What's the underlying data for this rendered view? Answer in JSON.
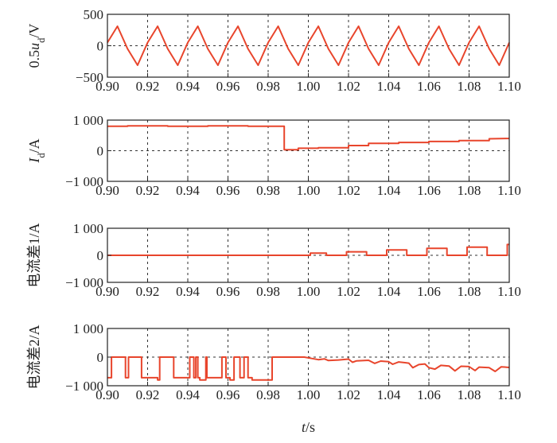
{
  "chart_data": [
    {
      "type": "line",
      "ylabel": "0.5u_d/V",
      "ylabel_parts": [
        {
          "t": "0.5"
        },
        {
          "t": "u",
          "i": true
        },
        {
          "t": "d",
          "sub": true
        },
        {
          "t": "/V"
        }
      ],
      "ylim": [
        -500,
        500
      ],
      "yticks": [
        -500,
        0,
        500
      ],
      "ytick_labels": [
        "−500",
        "0",
        "500"
      ],
      "xlim": [
        0.9,
        1.1
      ],
      "xticks": [
        0.9,
        0.92,
        0.94,
        0.96,
        0.98,
        1.0,
        1.02,
        1.04,
        1.06,
        1.08,
        1.1
      ],
      "xtick_labels": [
        "0.90",
        "0.92",
        "0.94",
        "0.96",
        "0.98",
        "1.00",
        "1.02",
        "1.04",
        "1.06",
        "1.08",
        "1.10"
      ],
      "grid": true,
      "color": "#e8452c",
      "series": [
        {
          "x": [
            0.9,
            0.905,
            0.91,
            0.915,
            0.92,
            0.925,
            0.93,
            0.935,
            0.94,
            0.945,
            0.95,
            0.955,
            0.96,
            0.965,
            0.97,
            0.975,
            0.98,
            0.985,
            0.99,
            0.995,
            1.0,
            1.005,
            1.01,
            1.015,
            1.02,
            1.025,
            1.03,
            1.035,
            1.04,
            1.045,
            1.05,
            1.055,
            1.06,
            1.065,
            1.07,
            1.075,
            1.08,
            1.085,
            1.09,
            1.095,
            1.1
          ],
          "values": [
            50,
            310,
            -50,
            -310,
            50,
            310,
            -50,
            -310,
            50,
            310,
            -50,
            -310,
            50,
            310,
            -50,
            -310,
            50,
            310,
            -50,
            -310,
            50,
            310,
            -50,
            -310,
            50,
            310,
            -50,
            -310,
            50,
            310,
            -50,
            -310,
            50,
            310,
            -50,
            -310,
            50,
            310,
            -50,
            -310,
            50
          ]
        }
      ]
    },
    {
      "type": "line",
      "ylabel": "I_d/A",
      "ylabel_parts": [
        {
          "t": "I",
          "i": true
        },
        {
          "t": "d",
          "sub": true
        },
        {
          "t": "/A"
        }
      ],
      "ylim": [
        -1000,
        1000
      ],
      "yticks": [
        -1000,
        0,
        1000
      ],
      "ytick_labels": [
        "−1 000",
        "0",
        "1 000"
      ],
      "xlim": [
        0.9,
        1.1
      ],
      "xticks": [
        0.9,
        0.92,
        0.94,
        0.96,
        0.98,
        1.0,
        1.02,
        1.04,
        1.06,
        1.08,
        1.1
      ],
      "xtick_labels": [
        "0.90",
        "0.92",
        "0.94",
        "0.96",
        "0.98",
        "1.00",
        "1.02",
        "1.04",
        "1.06",
        "1.08",
        "1.10"
      ],
      "grid": true,
      "color": "#e8452c",
      "series": [
        {
          "x": [
            0.9,
            0.91,
            0.91,
            0.93,
            0.93,
            0.95,
            0.95,
            0.97,
            0.97,
            0.988,
            0.988,
            0.995,
            0.995,
            1.005,
            1.005,
            1.02,
            1.02,
            1.03,
            1.03,
            1.045,
            1.045,
            1.06,
            1.06,
            1.075,
            1.075,
            1.09,
            1.09,
            1.1
          ],
          "values": [
            800,
            800,
            810,
            810,
            800,
            800,
            810,
            810,
            800,
            800,
            30,
            30,
            80,
            80,
            100,
            100,
            170,
            170,
            240,
            240,
            270,
            270,
            300,
            300,
            330,
            330,
            390,
            400
          ]
        }
      ]
    },
    {
      "type": "line",
      "ylabel": "电流差1/A",
      "ylabel_parts": [
        {
          "t": "电流差1/A"
        }
      ],
      "ylim": [
        -1000,
        1000
      ],
      "yticks": [
        -1000,
        0,
        1000
      ],
      "ytick_labels": [
        "−1 000",
        "0",
        "1 000"
      ],
      "xlim": [
        0.9,
        1.1
      ],
      "xticks": [
        0.9,
        0.92,
        0.94,
        0.96,
        0.98,
        1.0,
        1.02,
        1.04,
        1.06,
        1.08,
        1.1
      ],
      "xtick_labels": [
        "0.90",
        "0.92",
        "0.94",
        "0.96",
        "0.98",
        "1.00",
        "1.02",
        "1.04",
        "1.06",
        "1.08",
        "1.10"
      ],
      "grid": true,
      "color": "#e8452c",
      "series": [
        {
          "x": [
            0.9,
            1.001,
            1.001,
            1.009,
            1.009,
            1.019,
            1.019,
            1.029,
            1.029,
            1.039,
            1.039,
            1.049,
            1.049,
            1.059,
            1.059,
            1.069,
            1.069,
            1.079,
            1.079,
            1.089,
            1.089,
            1.099,
            1.099,
            1.1
          ],
          "values": [
            0,
            0,
            80,
            80,
            0,
            0,
            130,
            130,
            0,
            0,
            200,
            200,
            0,
            0,
            260,
            260,
            0,
            0,
            300,
            300,
            0,
            0,
            400,
            400
          ]
        }
      ]
    },
    {
      "type": "line",
      "ylabel": "电流差2/A",
      "ylabel_parts": [
        {
          "t": "电流差2/A"
        }
      ],
      "ylim": [
        -1000,
        1000
      ],
      "yticks": [
        -1000,
        0,
        1000
      ],
      "ytick_labels": [
        "−1 000",
        "0",
        "1 000"
      ],
      "xlim": [
        0.9,
        1.1
      ],
      "xticks": [
        0.9,
        0.92,
        0.94,
        0.96,
        0.98,
        1.0,
        1.02,
        1.04,
        1.06,
        1.08,
        1.1
      ],
      "xtick_labels": [
        "0.90",
        "0.92",
        "0.94",
        "0.96",
        "0.98",
        "1.00",
        "1.02",
        "1.04",
        "1.06",
        "1.08",
        "1.10"
      ],
      "xlabel": "t/s",
      "xlabel_parts": [
        {
          "t": "t",
          "i": true
        },
        {
          "t": "/s"
        }
      ],
      "grid": true,
      "color": "#e8452c",
      "series": [
        {
          "x": [
            0.9,
            0.902,
            0.902,
            0.909,
            0.909,
            0.9105,
            0.9105,
            0.917,
            0.917,
            0.925,
            0.925,
            0.926,
            0.926,
            0.933,
            0.933,
            0.941,
            0.941,
            0.943,
            0.943,
            0.944,
            0.944,
            0.945,
            0.945,
            0.946,
            0.946,
            0.949,
            0.949,
            0.9495,
            0.9495,
            0.957,
            0.957,
            0.959,
            0.959,
            0.961,
            0.961,
            0.963,
            0.963,
            0.966,
            0.966,
            0.968,
            0.968,
            0.97,
            0.97,
            0.972,
            0.972,
            0.982,
            0.982,
            0.998,
            1.002,
            1.005,
            1.008,
            1.01,
            1.015,
            1.02,
            1.022,
            1.024,
            1.03,
            1.033,
            1.036,
            1.04,
            1.042,
            1.045,
            1.05,
            1.052,
            1.055,
            1.058,
            1.06,
            1.063,
            1.066,
            1.07,
            1.073,
            1.076,
            1.08,
            1.083,
            1.085,
            1.09,
            1.093,
            1.096,
            1.1
          ],
          "values": [
            -720,
            -720,
            0,
            0,
            -720,
            -720,
            0,
            0,
            -720,
            -720,
            -800,
            -800,
            0,
            0,
            -720,
            -720,
            0,
            0,
            -720,
            -720,
            0,
            0,
            -720,
            -720,
            -800,
            -800,
            0,
            0,
            -720,
            -720,
            0,
            0,
            -720,
            -720,
            -800,
            -800,
            0,
            0,
            -720,
            -720,
            0,
            0,
            -720,
            -720,
            -800,
            -800,
            0,
            0,
            -50,
            -90,
            -60,
            -120,
            -100,
            -70,
            -180,
            -130,
            -110,
            -220,
            -140,
            -160,
            -250,
            -170,
            -210,
            -370,
            -260,
            -240,
            -370,
            -420,
            -290,
            -310,
            -480,
            -320,
            -330,
            -470,
            -350,
            -370,
            -500,
            -340,
            -360
          ]
        }
      ]
    }
  ]
}
